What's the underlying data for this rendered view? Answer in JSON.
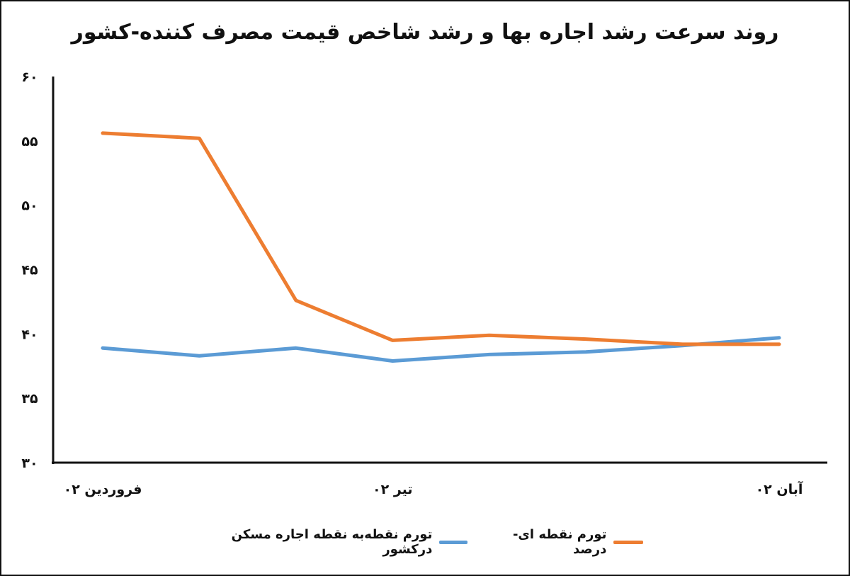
{
  "chart_data": {
    "type": "line",
    "title": "روند سرعت رشد اجاره بها و رشد شاخص قیمت مصرف کننده-کشور",
    "xlabel": "",
    "ylabel": "",
    "ylim": [
      30,
      60
    ],
    "yticks": [
      30,
      35,
      40,
      45,
      50,
      55,
      60
    ],
    "ytick_labels": [
      "۳۰",
      "۳۵",
      "۴۰",
      "۴۵",
      "۵۰",
      "۵۵",
      "۶۰"
    ],
    "categories": [
      "فروردین ۰۲",
      "",
      "",
      "تیر ۰۲",
      "",
      "",
      "",
      "آبان ۰۲"
    ],
    "x_tick_labels": [
      {
        "index": 0,
        "label": "فروردین ۰۲"
      },
      {
        "index": 3,
        "label": "تیر ۰۲"
      },
      {
        "index": 7,
        "label": "آبان ۰۲"
      }
    ],
    "series": [
      {
        "name": "تورم نقطه ای- درصد",
        "color": "#ED7D31",
        "values": [
          55.6,
          55.2,
          42.6,
          39.5,
          39.9,
          39.6,
          39.2,
          39.2
        ]
      },
      {
        "name": "تورم نقطه‌به نقطه اجاره مسکن درکشور",
        "color": "#5B9BD5",
        "values": [
          38.9,
          38.3,
          38.9,
          37.9,
          38.4,
          38.6,
          39.1,
          39.7
        ]
      }
    ],
    "grid": false,
    "legend": "bottom"
  }
}
